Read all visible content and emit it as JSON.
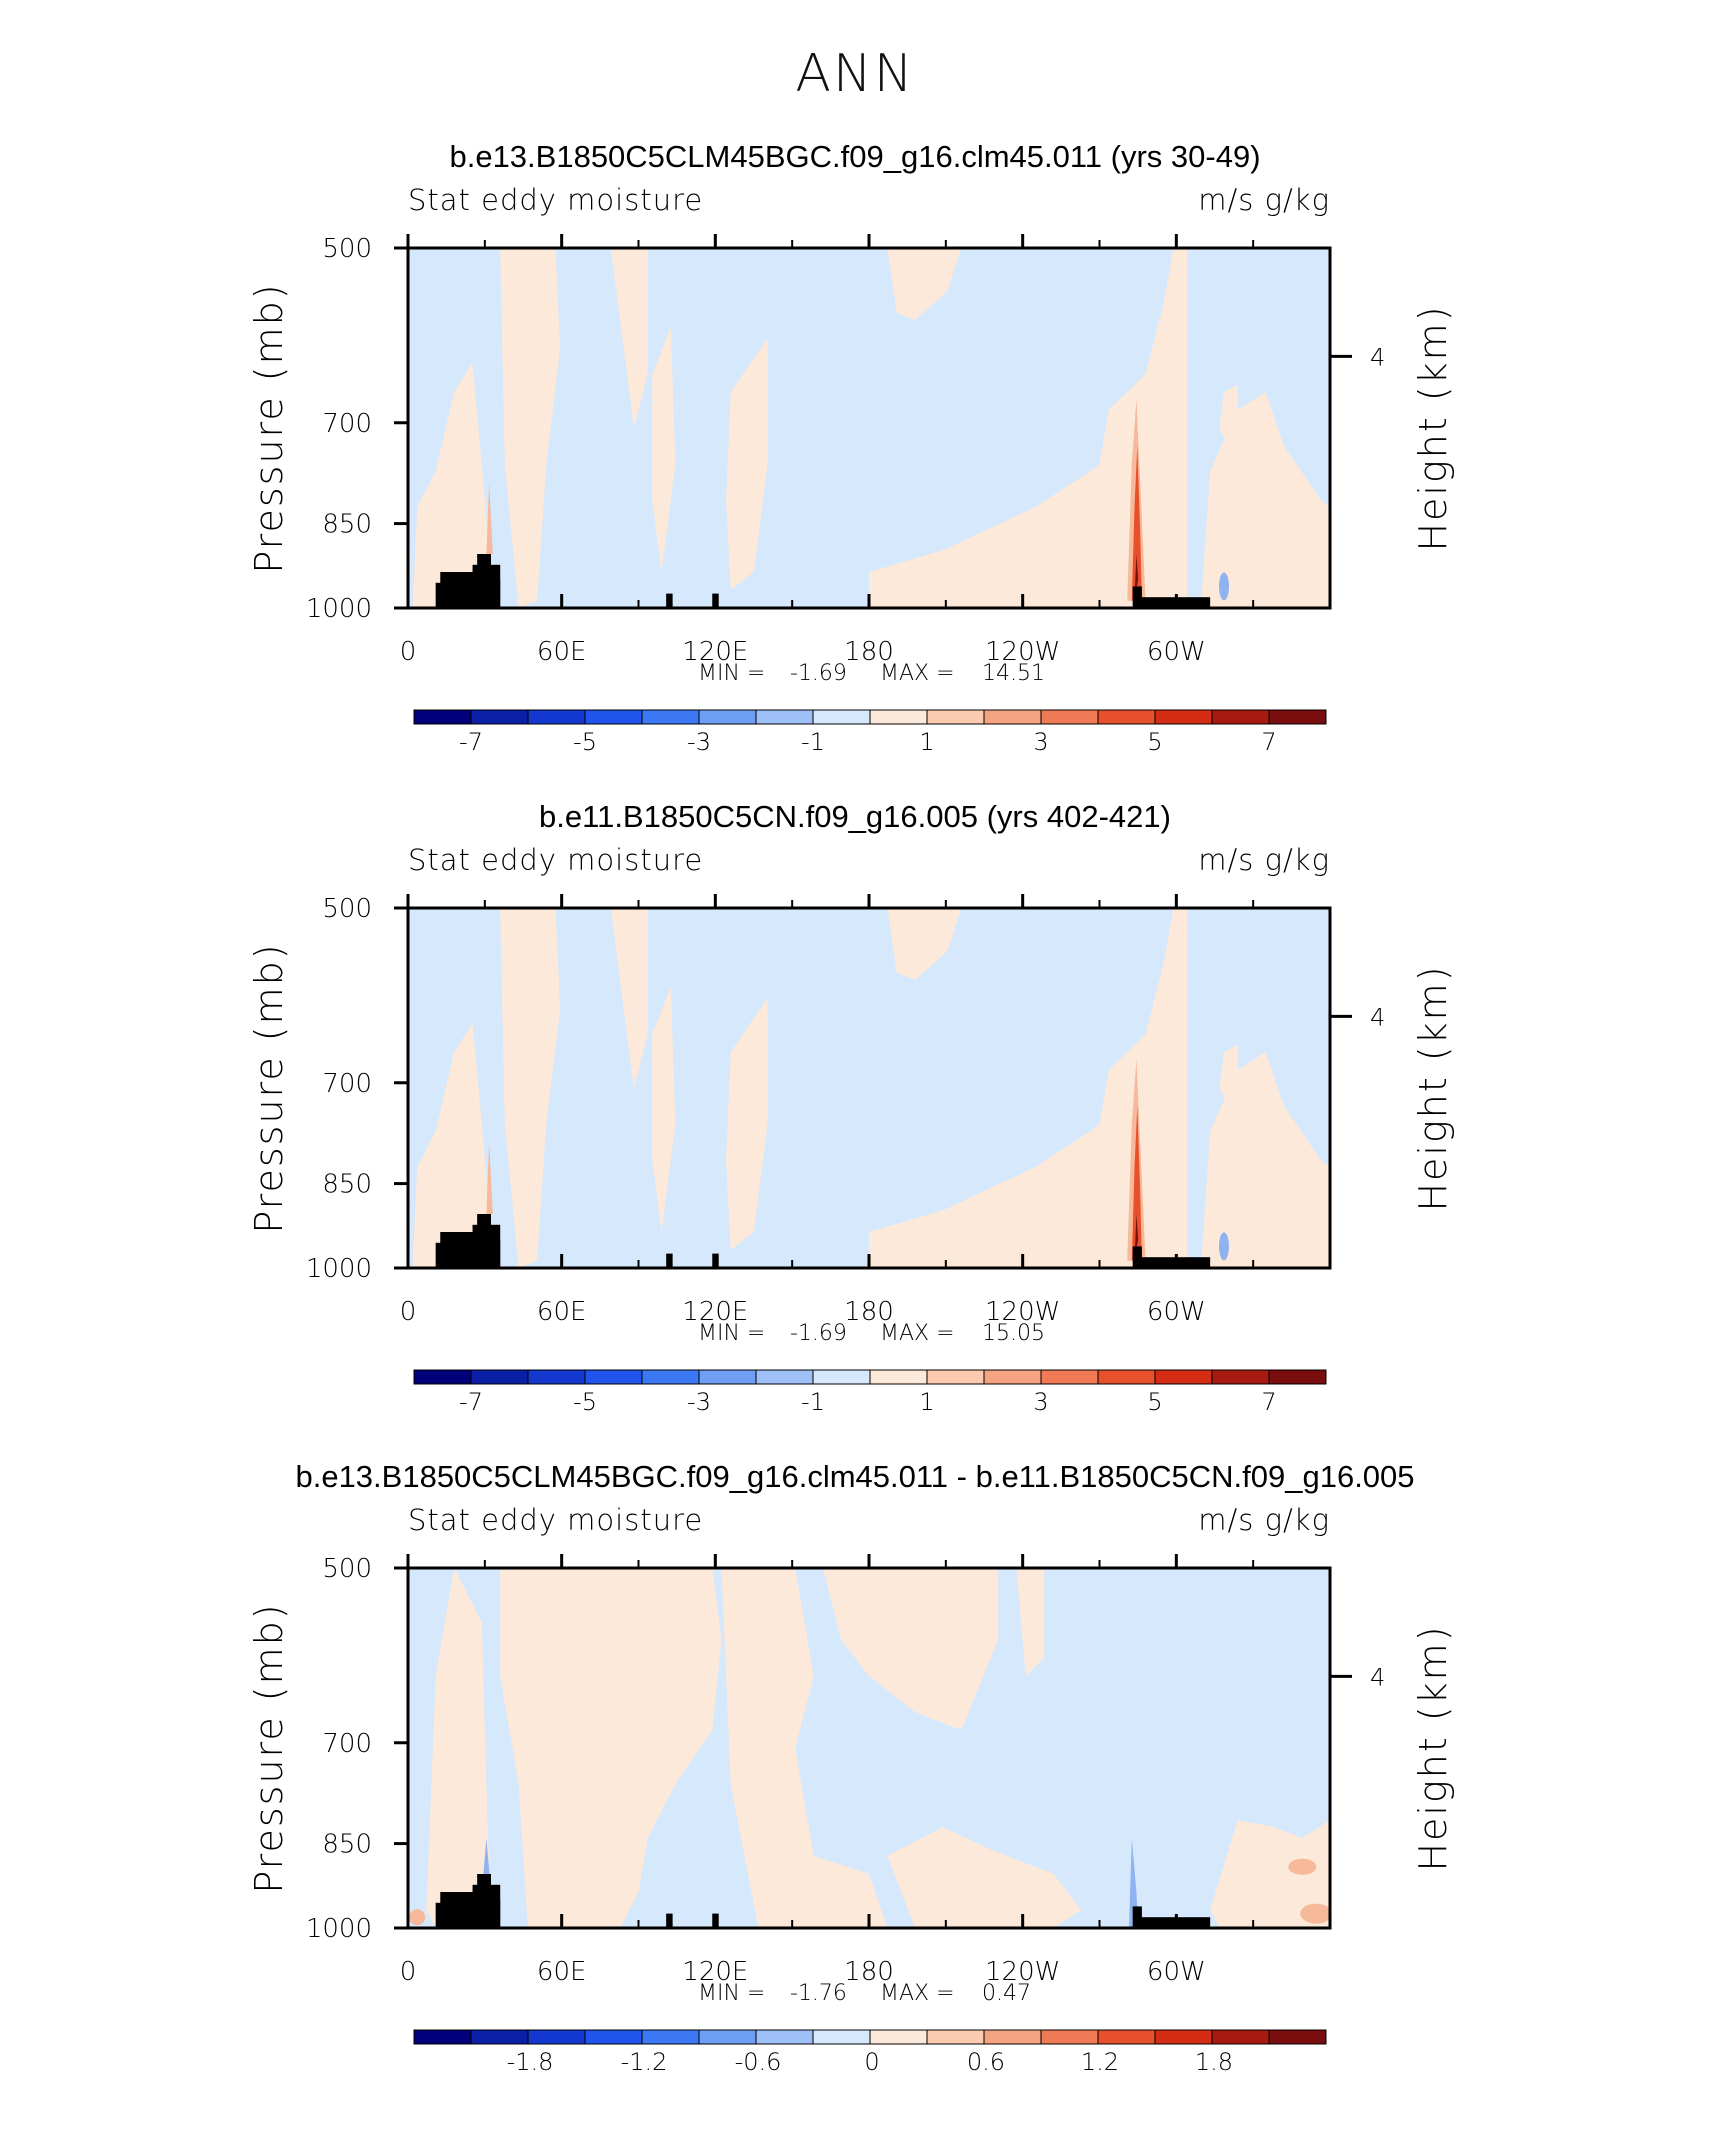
{
  "title": "ANN",
  "colors": {
    "neg_light": "#d6e8fb",
    "pos_light": "#fde9d9",
    "pos_mid": "#f6b99a",
    "pos_strong": "#e8502c",
    "pos_dark": "#7a0d0d",
    "neg_mid": "#8fb3f0",
    "terrain": "#000000"
  },
  "colorbar_palette": [
    "#00007a",
    "#0a1fa6",
    "#1338cf",
    "#1f55ec",
    "#3c78f4",
    "#6f9ef5",
    "#9fc0f7",
    "#d6e8fb",
    "#fde9d9",
    "#fbcab0",
    "#f6a383",
    "#f07a55",
    "#e8502c",
    "#d42d14",
    "#a81a10",
    "#7a0d0d"
  ],
  "chart_data": [
    {
      "type": "heatmap",
      "title": "b.e13.B1850C5CLM45BGC.f09_g16.clm45.011 (yrs 30-49)",
      "left_label": "Stat eddy moisture",
      "right_label": "m/s g/kg",
      "ylabel": "Pressure (mb)",
      "ylabel_right": "Height (km)",
      "yticks": [
        "500",
        "700",
        "850",
        "1000"
      ],
      "yticks_right": [
        "4"
      ],
      "xticks": [
        "0",
        "60E",
        "120E",
        "180",
        "120W",
        "60W"
      ],
      "xlim": [
        0,
        360
      ],
      "ylim": [
        1000,
        500
      ],
      "min_label": "MIN =",
      "min_value": "-1.69",
      "max_label": "MAX =",
      "max_value": "14.51",
      "colorbar_labels": [
        "-7",
        "-5",
        "-3",
        "-1",
        "1",
        "3",
        "5",
        "7"
      ]
    },
    {
      "type": "heatmap",
      "title": "b.e11.B1850C5CN.f09_g16.005 (yrs 402-421)",
      "left_label": "Stat eddy moisture",
      "right_label": "m/s g/kg",
      "ylabel": "Pressure (mb)",
      "ylabel_right": "Height (km)",
      "yticks": [
        "500",
        "700",
        "850",
        "1000"
      ],
      "yticks_right": [
        "4"
      ],
      "xticks": [
        "0",
        "60E",
        "120E",
        "180",
        "120W",
        "60W"
      ],
      "xlim": [
        0,
        360
      ],
      "ylim": [
        1000,
        500
      ],
      "min_label": "MIN =",
      "min_value": "-1.69",
      "max_label": "MAX =",
      "max_value": "15.05",
      "colorbar_labels": [
        "-7",
        "-5",
        "-3",
        "-1",
        "1",
        "3",
        "5",
        "7"
      ]
    },
    {
      "type": "heatmap",
      "title": "b.e13.B1850C5CLM45BGC.f09_g16.clm45.011 - b.e11.B1850C5CN.f09_g16.005",
      "left_label": "Stat eddy moisture",
      "right_label": "m/s g/kg",
      "ylabel": "Pressure (mb)",
      "ylabel_right": "Height (km)",
      "yticks": [
        "500",
        "700",
        "850",
        "1000"
      ],
      "yticks_right": [
        "4"
      ],
      "xticks": [
        "0",
        "60E",
        "120E",
        "180",
        "120W",
        "60W"
      ],
      "xlim": [
        0,
        360
      ],
      "ylim": [
        1000,
        500
      ],
      "min_label": "MIN =",
      "min_value": "-1.76",
      "max_label": "MAX =",
      "max_value": "0.47",
      "colorbar_labels": [
        "-1.8",
        "-1.2",
        "-0.6",
        "0",
        "0.6",
        "1.2",
        "1.8"
      ]
    }
  ]
}
